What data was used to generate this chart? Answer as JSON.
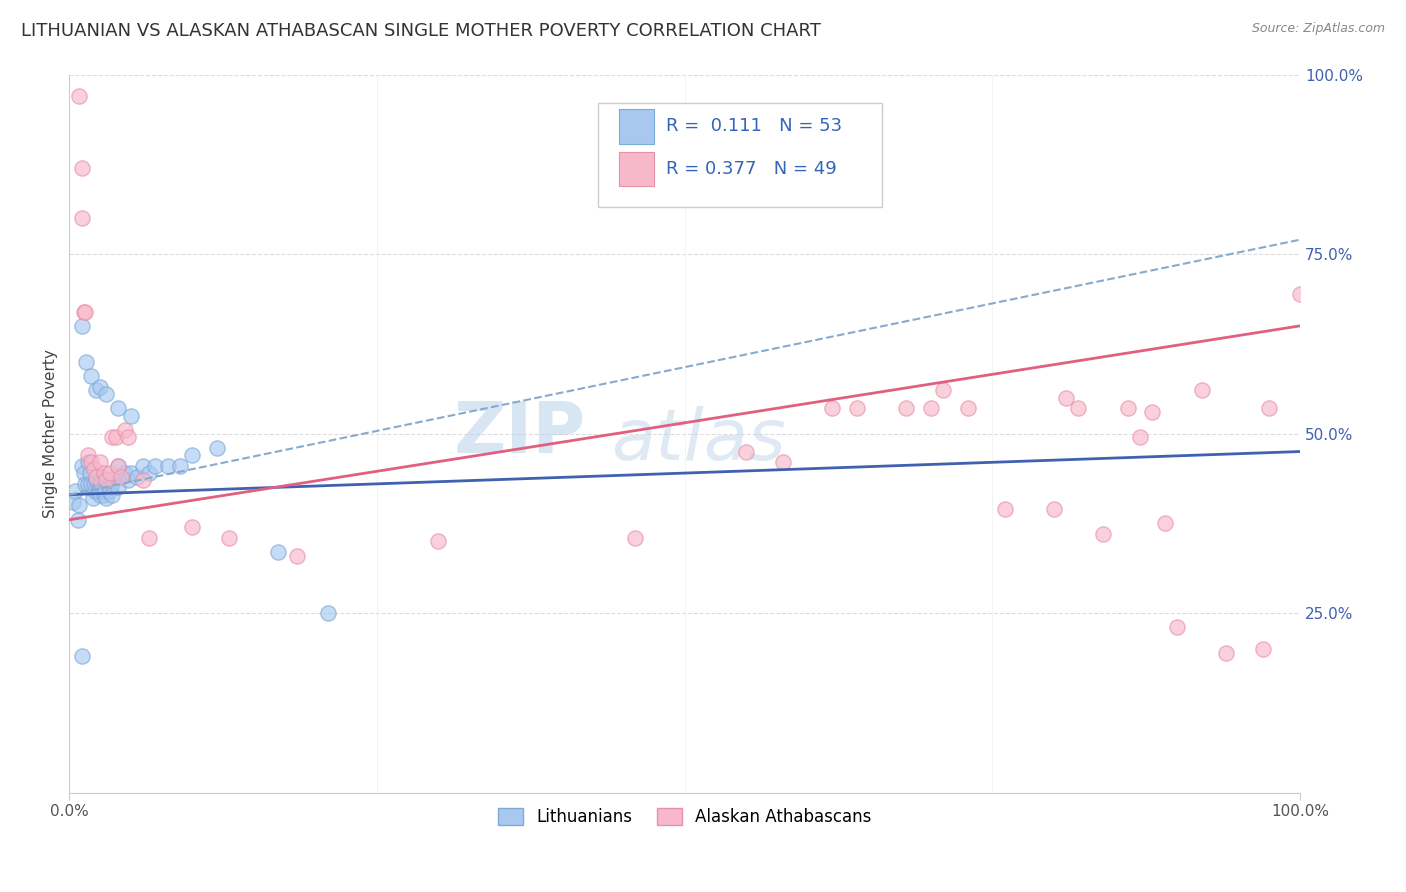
{
  "title": "LITHUANIAN VS ALASKAN ATHABASCAN SINGLE MOTHER POVERTY CORRELATION CHART",
  "source": "Source: ZipAtlas.com",
  "ylabel": "Single Mother Poverty",
  "xlim": [
    0,
    1
  ],
  "ylim": [
    0,
    1
  ],
  "ytick_vals": [
    0.0,
    0.25,
    0.5,
    0.75,
    1.0
  ],
  "ytick_labels": [
    "",
    "25.0%",
    "50.0%",
    "75.0%",
    "100.0%"
  ],
  "watermark_top": "ZIP",
  "watermark_bot": "atlas",
  "legend_R_blue": "0.111",
  "legend_N_blue": "53",
  "legend_R_pink": "0.377",
  "legend_N_pink": "49",
  "blue_fill": "#a8c8f0",
  "blue_edge": "#7aaad8",
  "pink_fill": "#f8b8cc",
  "pink_edge": "#e890a8",
  "blue_line_color": "#4060b0",
  "pink_line_color": "#e06080",
  "dash_line_color": "#88aacc",
  "grid_color": "#dddddd",
  "title_fontsize": 13,
  "source_fontsize": 9,
  "tick_fontsize": 11,
  "ylabel_fontsize": 11,
  "tick_color_y": "#4060b0",
  "tick_color_x": "#555555",
  "blue_scatter": [
    [
      0.003,
      0.405
    ],
    [
      0.005,
      0.42
    ],
    [
      0.007,
      0.38
    ],
    [
      0.008,
      0.4
    ],
    [
      0.01,
      0.455
    ],
    [
      0.012,
      0.445
    ],
    [
      0.013,
      0.43
    ],
    [
      0.015,
      0.46
    ],
    [
      0.015,
      0.43
    ],
    [
      0.017,
      0.445
    ],
    [
      0.018,
      0.43
    ],
    [
      0.019,
      0.41
    ],
    [
      0.02,
      0.43
    ],
    [
      0.021,
      0.42
    ],
    [
      0.022,
      0.435
    ],
    [
      0.023,
      0.42
    ],
    [
      0.024,
      0.42
    ],
    [
      0.025,
      0.435
    ],
    [
      0.025,
      0.415
    ],
    [
      0.026,
      0.43
    ],
    [
      0.027,
      0.44
    ],
    [
      0.028,
      0.415
    ],
    [
      0.029,
      0.42
    ],
    [
      0.03,
      0.435
    ],
    [
      0.03,
      0.41
    ],
    [
      0.032,
      0.42
    ],
    [
      0.033,
      0.425
    ],
    [
      0.035,
      0.43
    ],
    [
      0.035,
      0.415
    ],
    [
      0.038,
      0.44
    ],
    [
      0.04,
      0.455
    ],
    [
      0.04,
      0.425
    ],
    [
      0.045,
      0.445
    ],
    [
      0.048,
      0.435
    ],
    [
      0.05,
      0.445
    ],
    [
      0.055,
      0.44
    ],
    [
      0.06,
      0.455
    ],
    [
      0.065,
      0.445
    ],
    [
      0.07,
      0.455
    ],
    [
      0.08,
      0.455
    ],
    [
      0.09,
      0.455
    ],
    [
      0.1,
      0.47
    ],
    [
      0.01,
      0.65
    ],
    [
      0.014,
      0.6
    ],
    [
      0.018,
      0.58
    ],
    [
      0.022,
      0.56
    ],
    [
      0.025,
      0.565
    ],
    [
      0.03,
      0.555
    ],
    [
      0.04,
      0.535
    ],
    [
      0.05,
      0.525
    ],
    [
      0.12,
      0.48
    ],
    [
      0.17,
      0.335
    ],
    [
      0.21,
      0.25
    ],
    [
      0.01,
      0.19
    ]
  ],
  "pink_scatter": [
    [
      0.008,
      0.97
    ],
    [
      0.01,
      0.87
    ],
    [
      0.01,
      0.8
    ],
    [
      0.012,
      0.67
    ],
    [
      0.013,
      0.67
    ],
    [
      0.015,
      0.47
    ],
    [
      0.018,
      0.46
    ],
    [
      0.02,
      0.45
    ],
    [
      0.022,
      0.44
    ],
    [
      0.025,
      0.46
    ],
    [
      0.028,
      0.445
    ],
    [
      0.03,
      0.435
    ],
    [
      0.033,
      0.445
    ],
    [
      0.035,
      0.495
    ],
    [
      0.038,
      0.495
    ],
    [
      0.04,
      0.455
    ],
    [
      0.042,
      0.44
    ],
    [
      0.045,
      0.505
    ],
    [
      0.048,
      0.495
    ],
    [
      0.06,
      0.435
    ],
    [
      0.065,
      0.355
    ],
    [
      0.1,
      0.37
    ],
    [
      0.13,
      0.355
    ],
    [
      0.185,
      0.33
    ],
    [
      0.3,
      0.35
    ],
    [
      0.46,
      0.355
    ],
    [
      0.55,
      0.475
    ],
    [
      0.58,
      0.46
    ],
    [
      0.62,
      0.535
    ],
    [
      0.64,
      0.535
    ],
    [
      0.68,
      0.535
    ],
    [
      0.7,
      0.535
    ],
    [
      0.71,
      0.56
    ],
    [
      0.73,
      0.535
    ],
    [
      0.76,
      0.395
    ],
    [
      0.8,
      0.395
    ],
    [
      0.81,
      0.55
    ],
    [
      0.82,
      0.535
    ],
    [
      0.84,
      0.36
    ],
    [
      0.86,
      0.535
    ],
    [
      0.87,
      0.495
    ],
    [
      0.88,
      0.53
    ],
    [
      0.89,
      0.375
    ],
    [
      0.9,
      0.23
    ],
    [
      0.92,
      0.56
    ],
    [
      0.94,
      0.195
    ],
    [
      0.97,
      0.2
    ],
    [
      0.975,
      0.535
    ],
    [
      1.0,
      0.695
    ]
  ],
  "blue_line": {
    "x0": 0.0,
    "y0": 0.415,
    "x1": 1.0,
    "y1": 0.475
  },
  "pink_line": {
    "x0": 0.0,
    "y0": 0.38,
    "x1": 1.0,
    "y1": 0.65
  },
  "dash_line": {
    "x0": 0.0,
    "y0": 0.415,
    "x1": 1.0,
    "y1": 0.77
  },
  "background_color": "#ffffff"
}
